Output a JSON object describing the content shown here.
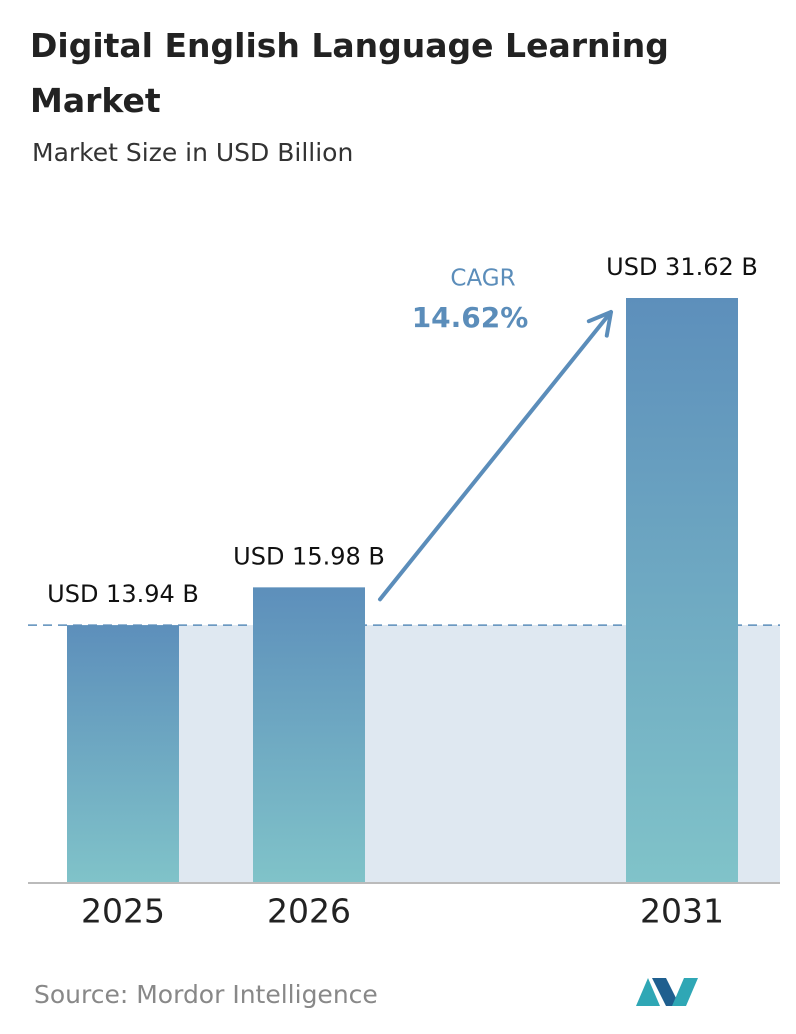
{
  "chart_data": {
    "type": "bar",
    "title": "Digital English Language Learning Market",
    "subtitle": "Market Size in USD Billion",
    "categories": [
      "2025",
      "2026",
      "2031"
    ],
    "values": [
      13.94,
      15.98,
      31.62
    ],
    "value_labels": [
      "USD 13.94 B",
      "USD 15.98 B",
      "USD 31.62 B"
    ],
    "annotation": {
      "label": "CAGR",
      "text": "14.62%"
    },
    "source": "Source:  Mordor Intelligence"
  }
}
